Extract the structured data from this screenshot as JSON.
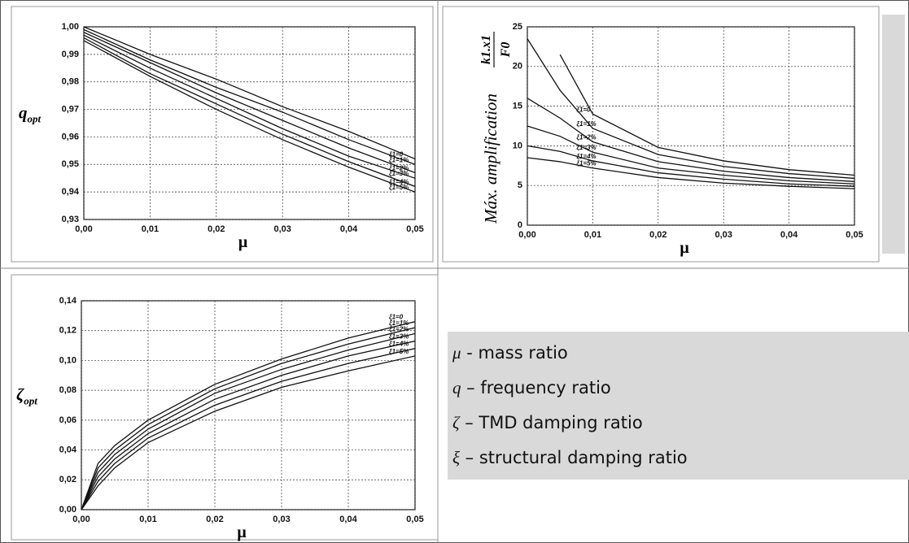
{
  "chart_data": [
    {
      "type": "line",
      "ylabel": "q",
      "ylabel_sub": "opt",
      "xlabel": "μ",
      "x": [
        0,
        0.01,
        0.02,
        0.03,
        0.04,
        0.05
      ],
      "xlim": [
        0,
        0.05
      ],
      "xticks": [
        {
          "value": 0,
          "label": "0,00"
        },
        {
          "value": 0.01,
          "label": "0,01"
        },
        {
          "value": 0.02,
          "label": "0,02"
        },
        {
          "value": 0.03,
          "label": "0,03"
        },
        {
          "value": 0.04,
          "label": "0,04"
        },
        {
          "value": 0.05,
          "label": "0,05"
        }
      ],
      "ylim": [
        0.93,
        1.0
      ],
      "yticks": [
        {
          "value": 0.93,
          "label": "0,93"
        },
        {
          "value": 0.94,
          "label": "0,94"
        },
        {
          "value": 0.95,
          "label": "0,95"
        },
        {
          "value": 0.96,
          "label": "0,96"
        },
        {
          "value": 0.97,
          "label": "0,97"
        },
        {
          "value": 0.98,
          "label": "0,98"
        },
        {
          "value": 0.99,
          "label": "0,99"
        },
        {
          "value": 1.0,
          "label": "1,00"
        }
      ],
      "grid": true,
      "series": [
        {
          "name": "ξ1=0",
          "color": "#111111",
          "values": [
            1.0,
            0.99,
            0.981,
            0.971,
            0.962,
            0.952
          ]
        },
        {
          "name": "ξ1=1%",
          "color": "#111111",
          "values": [
            0.999,
            0.988,
            0.978,
            0.969,
            0.959,
            0.95
          ]
        },
        {
          "name": "ξ1=2%",
          "color": "#111111",
          "values": [
            0.998,
            0.987,
            0.976,
            0.966,
            0.956,
            0.947
          ]
        },
        {
          "name": "ξ1=3%",
          "color": "#111111",
          "values": [
            0.997,
            0.985,
            0.974,
            0.963,
            0.953,
            0.945
          ]
        },
        {
          "name": "ξ1=4%",
          "color": "#111111",
          "values": [
            0.996,
            0.983,
            0.972,
            0.961,
            0.951,
            0.942
          ]
        },
        {
          "name": "ξ1=5%",
          "color": "#111111",
          "values": [
            0.995,
            0.982,
            0.97,
            0.959,
            0.949,
            0.94
          ]
        }
      ]
    },
    {
      "type": "line",
      "ylabel": "Máx. amplification",
      "ylabel_numerator": "k1.x1",
      "ylabel_denominator": "F0",
      "xlabel": "μ",
      "x": [
        0,
        0.005,
        0.01,
        0.02,
        0.03,
        0.04,
        0.05
      ],
      "xlim": [
        0,
        0.05
      ],
      "xticks": [
        {
          "value": 0,
          "label": "0,00"
        },
        {
          "value": 0.01,
          "label": "0,01"
        },
        {
          "value": 0.02,
          "label": "0,02"
        },
        {
          "value": 0.03,
          "label": "0,03"
        },
        {
          "value": 0.04,
          "label": "0,04"
        },
        {
          "value": 0.05,
          "label": "0,05"
        }
      ],
      "ylim": [
        0,
        25
      ],
      "yticks": [
        0,
        5,
        10,
        15,
        20,
        25
      ],
      "grid": true,
      "series": [
        {
          "name": "ξ1=0",
          "color": "#111111",
          "values": [
            null,
            21.5,
            14,
            9.8,
            8.1,
            7.0,
            6.3
          ]
        },
        {
          "name": "ξ1=1%",
          "color": "#111111",
          "values": [
            23.5,
            17,
            12.2,
            8.9,
            7.4,
            6.5,
            5.9
          ]
        },
        {
          "name": "ξ1=2%",
          "color": "#111111",
          "values": [
            16,
            13.5,
            10.5,
            8.0,
            6.8,
            6.0,
            5.5
          ]
        },
        {
          "name": "ξ1=3%",
          "color": "#111111",
          "values": [
            12.5,
            11.2,
            9.2,
            7.2,
            6.3,
            5.6,
            5.2
          ]
        },
        {
          "name": "ξ1=4%",
          "color": "#111111",
          "values": [
            10,
            9.3,
            8.1,
            6.6,
            5.8,
            5.2,
            4.9
          ]
        },
        {
          "name": "ξ1=5%",
          "color": "#111111",
          "values": [
            8.5,
            8.0,
            7.2,
            6.0,
            5.3,
            4.9,
            4.6
          ]
        }
      ]
    },
    {
      "type": "line",
      "ylabel": "ζ",
      "ylabel_sub": "opt",
      "xlabel": "μ",
      "x": [
        0,
        0.0025,
        0.005,
        0.01,
        0.02,
        0.03,
        0.04,
        0.05
      ],
      "xlim": [
        0,
        0.05
      ],
      "xticks": [
        {
          "value": 0,
          "label": "0,00"
        },
        {
          "value": 0.01,
          "label": "0,01"
        },
        {
          "value": 0.02,
          "label": "0,02"
        },
        {
          "value": 0.03,
          "label": "0,03"
        },
        {
          "value": 0.04,
          "label": "0,04"
        },
        {
          "value": 0.05,
          "label": "0,05"
        }
      ],
      "ylim": [
        0,
        0.14
      ],
      "yticks": [
        {
          "value": 0,
          "label": "0,00"
        },
        {
          "value": 0.02,
          "label": "0,02"
        },
        {
          "value": 0.04,
          "label": "0,04"
        },
        {
          "value": 0.06,
          "label": "0,06"
        },
        {
          "value": 0.08,
          "label": "0,08"
        },
        {
          "value": 0.1,
          "label": "0,10"
        },
        {
          "value": 0.12,
          "label": "0,12"
        },
        {
          "value": 0.14,
          "label": "0,14"
        }
      ],
      "grid": true,
      "series": [
        {
          "name": "ξ1=0",
          "color": "#111111",
          "values": [
            0,
            0.031,
            0.043,
            0.06,
            0.084,
            0.101,
            0.115,
            0.126
          ]
        },
        {
          "name": "ξ1=1%",
          "color": "#111111",
          "values": [
            0,
            0.028,
            0.04,
            0.057,
            0.081,
            0.098,
            0.111,
            0.122
          ]
        },
        {
          "name": "ξ1=2%",
          "color": "#111111",
          "values": [
            0,
            0.025,
            0.037,
            0.054,
            0.078,
            0.094,
            0.107,
            0.118
          ]
        },
        {
          "name": "ξ1=3%",
          "color": "#111111",
          "values": [
            0,
            0.022,
            0.034,
            0.051,
            0.074,
            0.09,
            0.103,
            0.113
          ]
        },
        {
          "name": "ξ1=4%",
          "color": "#111111",
          "values": [
            0,
            0.019,
            0.031,
            0.048,
            0.07,
            0.086,
            0.098,
            0.108
          ]
        },
        {
          "name": "ξ1=5%",
          "color": "#111111",
          "values": [
            0,
            0.016,
            0.028,
            0.045,
            0.066,
            0.082,
            0.093,
            0.103
          ]
        }
      ]
    }
  ],
  "definitions": [
    {
      "symbol": "μ",
      "text": " - mass ratio"
    },
    {
      "symbol": "q",
      "text": " – frequency ratio"
    },
    {
      "symbol": "ζ",
      "text": " – TMD damping ratio"
    },
    {
      "symbol": "ξ",
      "text": " – structural damping ratio"
    }
  ]
}
